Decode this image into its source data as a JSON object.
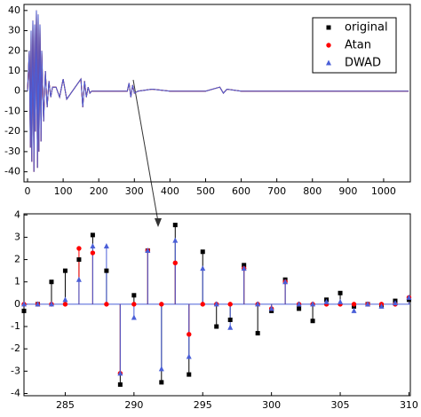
{
  "chart_data": [
    {
      "type": "line",
      "legend": "upper right",
      "x": [
        0,
        5,
        8,
        10,
        12,
        15,
        18,
        20,
        22,
        25,
        28,
        30,
        32,
        35,
        38,
        40,
        45,
        50,
        55,
        60,
        65,
        70,
        80,
        90,
        100,
        110,
        150,
        155,
        160,
        165,
        170,
        175,
        180,
        280,
        285,
        290,
        295,
        300,
        310,
        350,
        400,
        500,
        540,
        550,
        560,
        600,
        700,
        800,
        900,
        1000,
        1070
      ],
      "xlim": [
        -10,
        1075
      ],
      "xticks": [
        0,
        100,
        200,
        300,
        400,
        500,
        600,
        700,
        800,
        900,
        1000
      ],
      "ylim": [
        -45,
        43
      ],
      "yticks": [
        -40,
        -30,
        -20,
        -10,
        0,
        10,
        20,
        30,
        40
      ],
      "series": [
        {
          "name": "original",
          "color": "#000000",
          "marker": "square",
          "values": [
            0,
            20,
            -28,
            30,
            -35,
            35,
            -40,
            33,
            -20,
            40,
            -38,
            38,
            -30,
            33,
            -25,
            20,
            -15,
            10,
            -8,
            5,
            -3,
            2,
            2,
            -3,
            6,
            -4,
            6,
            -8,
            5,
            -3,
            2,
            -1,
            0,
            0,
            4,
            -3,
            3,
            -1,
            0,
            1,
            0,
            0,
            2,
            -1,
            1,
            0,
            0,
            0,
            0,
            0,
            0
          ]
        },
        {
          "name": "Atan",
          "color": "#ff0000",
          "marker": "circle",
          "values": [
            0,
            20,
            -28,
            30,
            -35,
            35,
            -40,
            33,
            -20,
            40,
            -38,
            38,
            -30,
            33,
            -25,
            20,
            -15,
            10,
            -8,
            5,
            -3,
            2,
            2,
            -3,
            6,
            -4,
            6,
            -8,
            5,
            -3,
            2,
            -1,
            0,
            0,
            4,
            -3,
            3,
            -1,
            0,
            1,
            0,
            0,
            2,
            -1,
            1,
            0,
            0,
            0,
            0,
            0,
            0
          ]
        },
        {
          "name": "DWAD",
          "color": "#4a5fd8",
          "marker": "triangle",
          "values": [
            0,
            20,
            -28,
            30,
            -35,
            35,
            -40,
            33,
            -20,
            40,
            -38,
            38,
            -30,
            33,
            -25,
            20,
            -15,
            10,
            -8,
            5,
            -3,
            2,
            2,
            -3,
            6,
            -4,
            6,
            -8,
            5,
            -3,
            2,
            -1,
            0,
            0,
            4,
            -3,
            3,
            -1,
            0,
            1,
            0,
            0,
            2,
            -1,
            1,
            0,
            0,
            0,
            0,
            0,
            0
          ]
        }
      ]
    },
    {
      "type": "stem",
      "x": [
        282,
        283,
        284,
        285,
        286,
        287,
        288,
        289,
        290,
        291,
        292,
        293,
        294,
        295,
        296,
        297,
        298,
        299,
        300,
        301,
        302,
        303,
        304,
        305,
        306,
        307,
        308,
        309,
        310
      ],
      "xlim": [
        282,
        310.1
      ],
      "xticks": [
        285,
        290,
        295,
        300,
        305,
        310
      ],
      "ylim": [
        -4.1,
        4.05
      ],
      "yticks": [
        -4,
        -3,
        -2,
        -1,
        0,
        1,
        2,
        3,
        4
      ],
      "series": [
        {
          "name": "original",
          "color": "#000000",
          "marker": "square",
          "values": [
            -0.3,
            0,
            1.0,
            1.5,
            2.0,
            3.1,
            1.5,
            -3.6,
            0.4,
            2.4,
            -3.5,
            3.55,
            -3.15,
            2.35,
            -1.0,
            -0.7,
            1.75,
            -1.3,
            -0.3,
            1.1,
            -0.2,
            -0.75,
            0.2,
            0.5,
            -0.1,
            0,
            -0.05,
            0.15,
            0.2
          ]
        },
        {
          "name": "Atan",
          "color": "#ff0000",
          "marker": "circle",
          "values": [
            0,
            0,
            0,
            0,
            2.5,
            2.3,
            0,
            -3.1,
            0,
            2.4,
            0,
            1.85,
            -1.35,
            0,
            0,
            0,
            1.6,
            0,
            -0.2,
            1.0,
            0,
            0,
            0,
            0,
            0,
            0,
            0,
            0,
            0.3
          ]
        },
        {
          "name": "DWAD",
          "color": "#4a5fd8",
          "marker": "triangle",
          "values": [
            0,
            0,
            0,
            0.2,
            1.1,
            2.6,
            2.6,
            -3.1,
            -0.6,
            2.4,
            -2.9,
            2.85,
            -2.35,
            1.6,
            0,
            -1.05,
            1.6,
            0,
            -0.2,
            1.0,
            0,
            0,
            0.1,
            0.1,
            -0.3,
            0,
            -0.1,
            0.05,
            0.3
          ]
        }
      ]
    }
  ]
}
